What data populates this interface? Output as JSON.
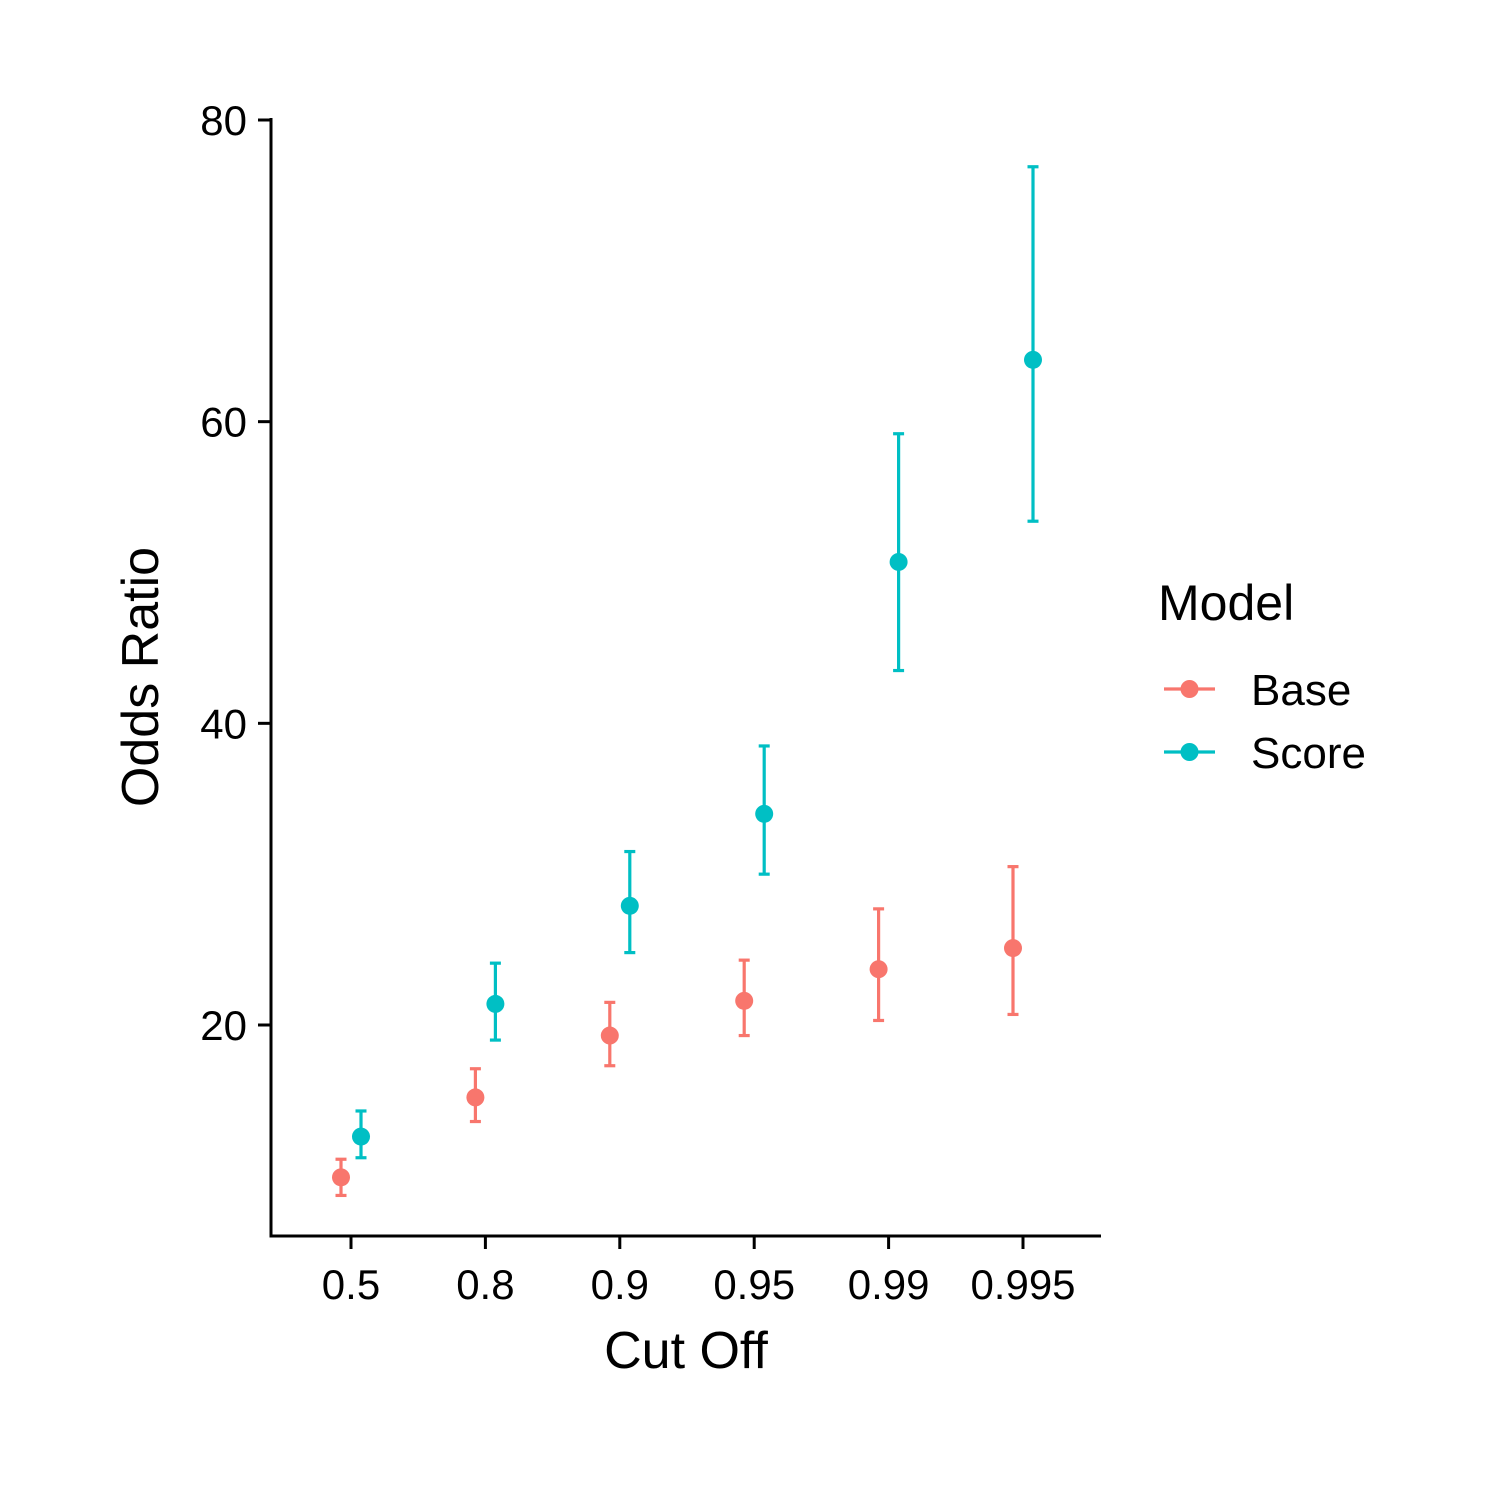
{
  "chart_data": {
    "type": "scatter",
    "title": "",
    "xlabel": "Cut Off",
    "ylabel": "Odds Ratio",
    "categories": [
      "0.5",
      "0.8",
      "0.9",
      "0.95",
      "0.99",
      "0.995"
    ],
    "ylim": [
      6,
      80
    ],
    "yticks": [
      20,
      40,
      60,
      80
    ],
    "grid": false,
    "legend": {
      "title": "Model",
      "position": "right"
    },
    "series": [
      {
        "name": "Base",
        "color": "#F8766D",
        "values": [
          9.9,
          15.2,
          19.3,
          21.6,
          23.7,
          25.1
        ],
        "lower": [
          8.7,
          13.6,
          17.3,
          19.3,
          20.3,
          20.7
        ],
        "upper": [
          11.1,
          17.1,
          21.5,
          24.3,
          27.7,
          30.5
        ]
      },
      {
        "name": "Score",
        "color": "#00BFC4",
        "values": [
          12.6,
          21.4,
          27.9,
          34.0,
          50.7,
          64.1
        ],
        "lower": [
          11.2,
          19.0,
          24.8,
          30.0,
          43.5,
          53.4
        ],
        "upper": [
          14.3,
          24.1,
          31.5,
          38.5,
          59.2,
          76.9
        ]
      }
    ]
  }
}
